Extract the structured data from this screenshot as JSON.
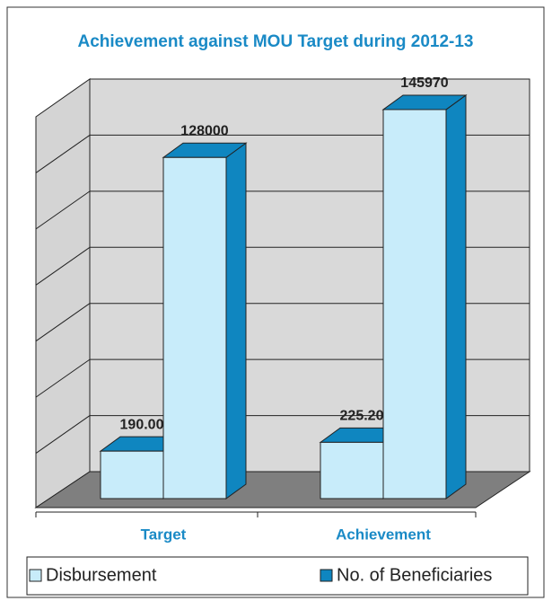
{
  "chart_data": {
    "type": "bar3d",
    "title": "Achievement against MOU Target during 2012-13",
    "categories": [
      "Target",
      "Achievement"
    ],
    "series": [
      {
        "name": "Disbursement",
        "color": "#c8ecfa",
        "values": [
          190,
          225.2
        ],
        "value_labels": [
          "190.00",
          "225.20"
        ]
      },
      {
        "name": "No. of Beneficiaries",
        "color": "#0f86c0",
        "values": [
          128000,
          145970
        ],
        "axis": "y2"
      }
    ],
    "ylim": [
      0,
      1600
    ],
    "y2lim": [
      0,
      150000
    ],
    "grid": true,
    "legend": "bottom"
  }
}
